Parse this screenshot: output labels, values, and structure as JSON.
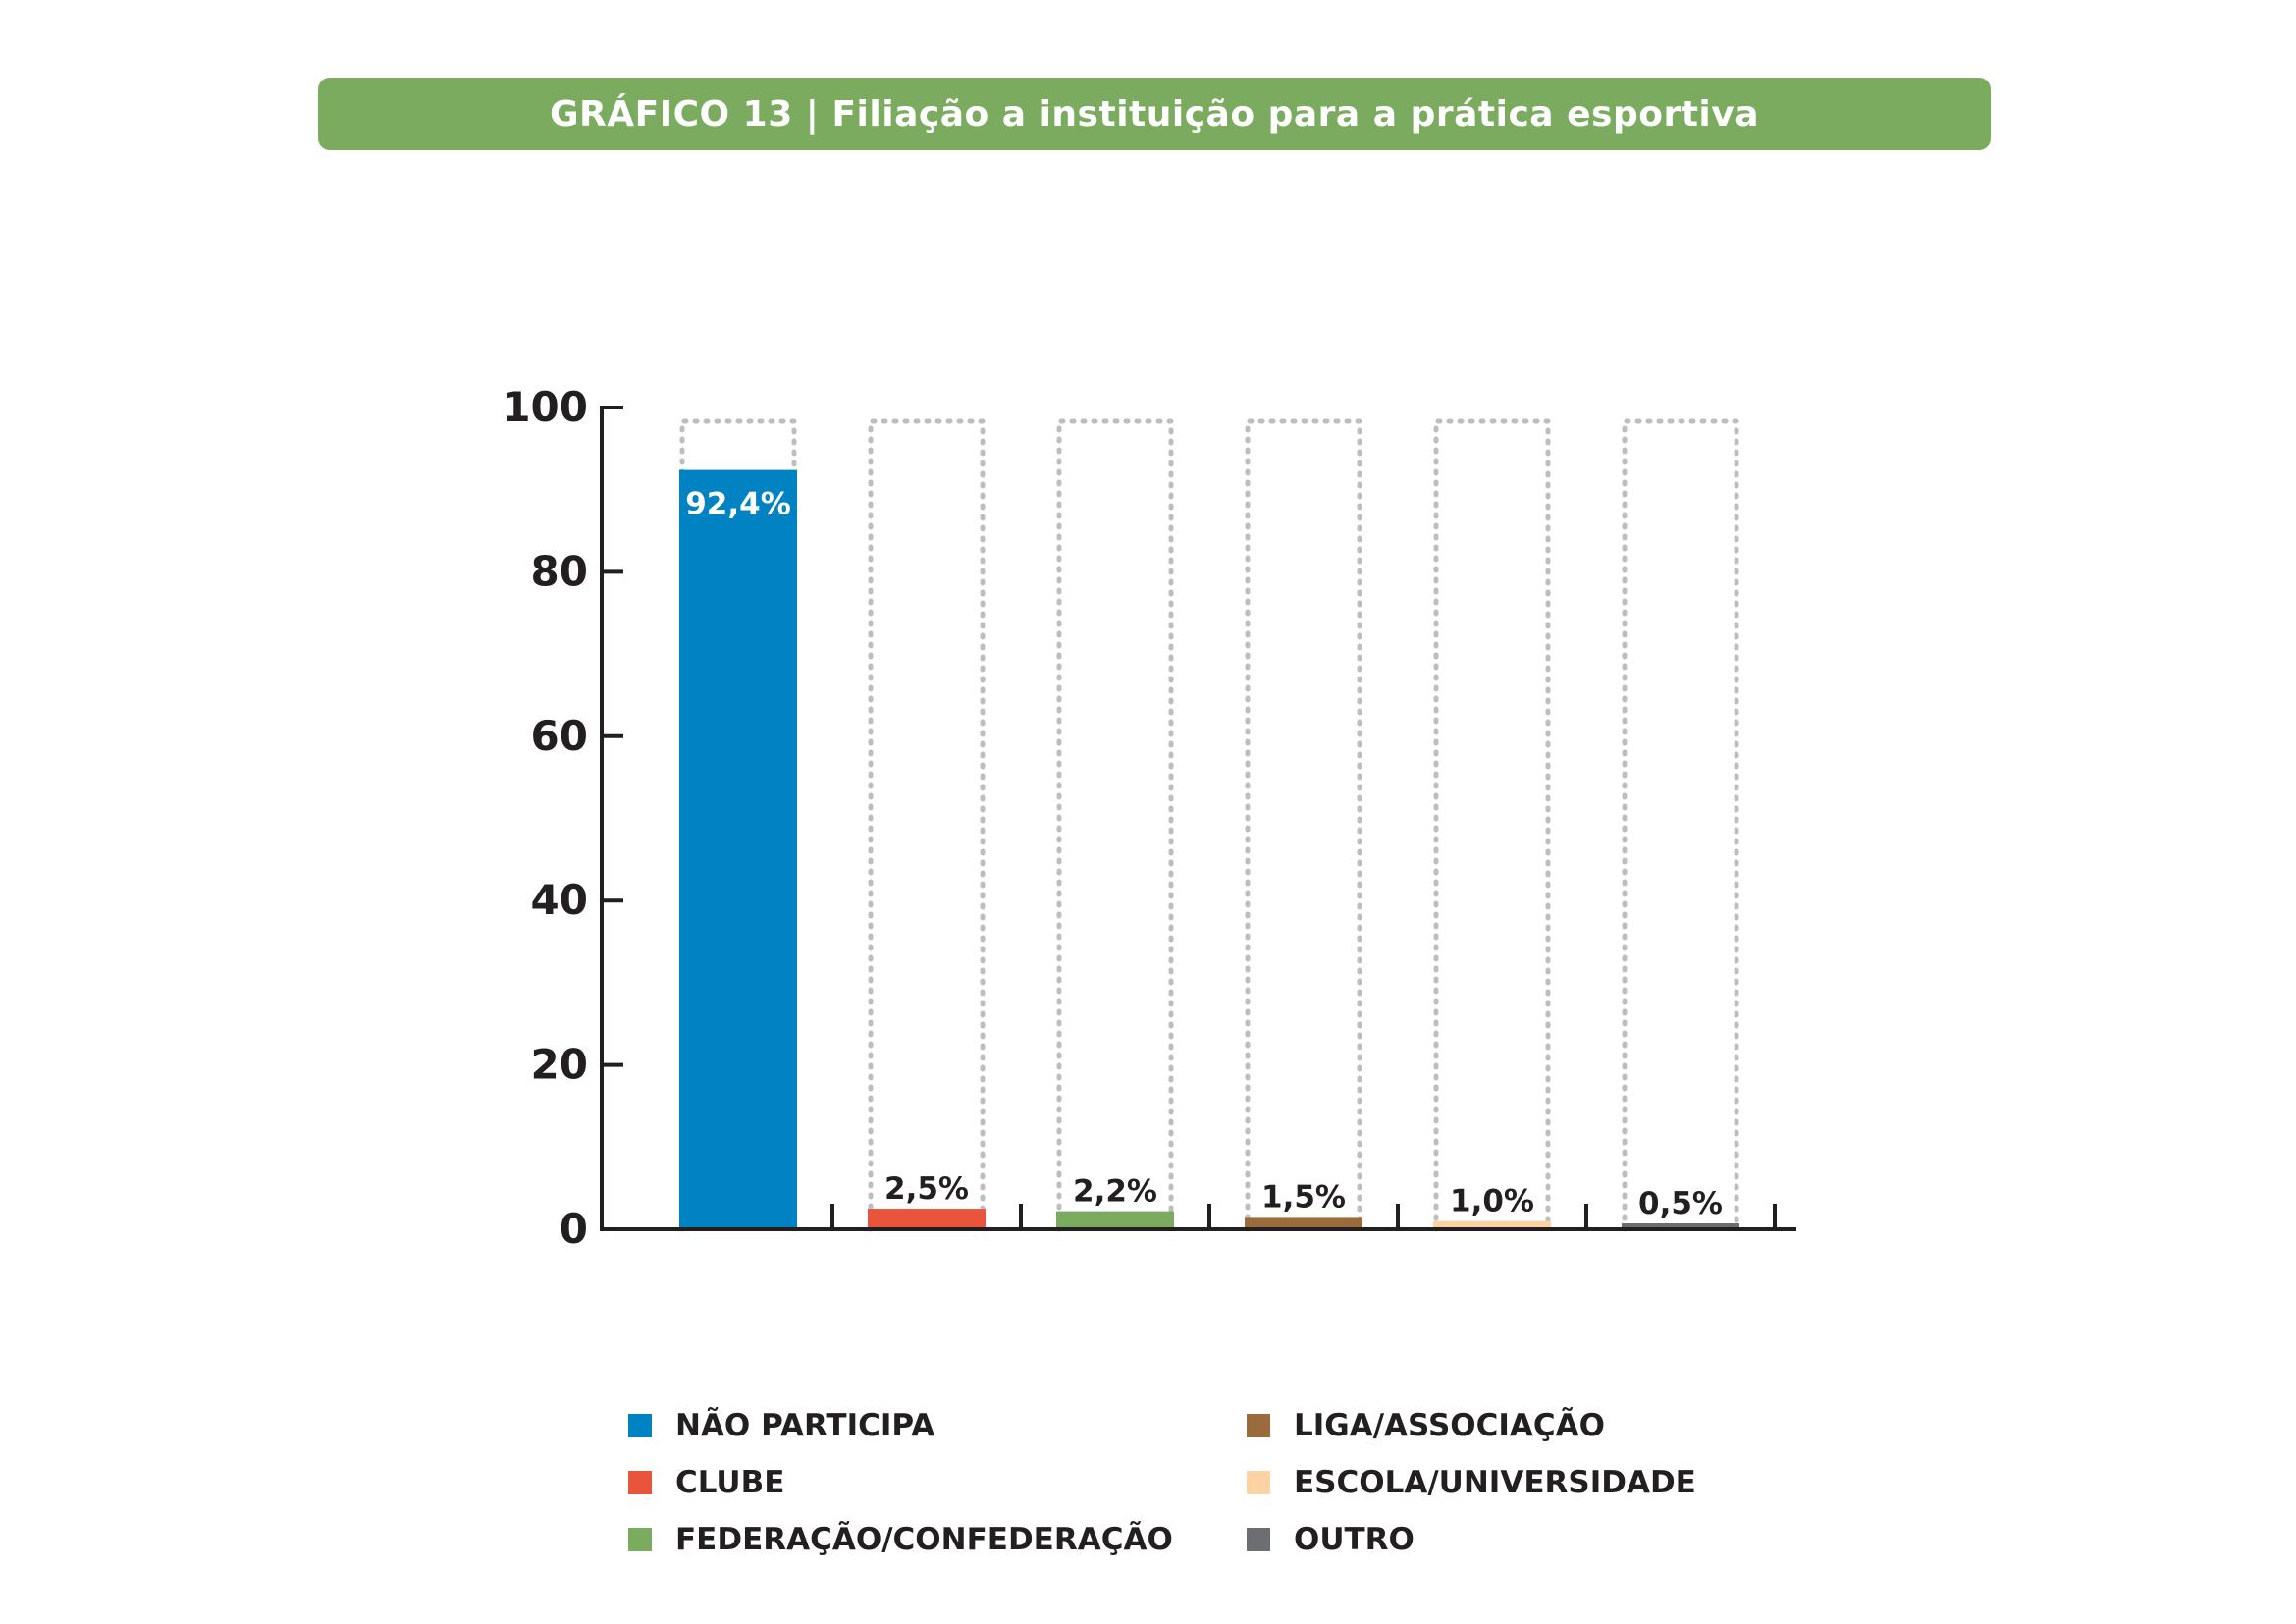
{
  "title": "GRÁFICO 13 | Filiação a instituição para a prática esportiva",
  "chart_data": {
    "type": "bar",
    "categories": [
      "NÃO PARTICIPA",
      "CLUBE",
      "FEDERAÇÃO/CONFEDERAÇÃO",
      "LIGA/ASSOCIAÇÃO",
      "ESCOLA/UNIVERSIDADE",
      "OUTRO"
    ],
    "values": [
      92.4,
      2.5,
      2.2,
      1.5,
      1.0,
      0.5
    ],
    "data_labels": [
      "92,4%",
      "2,5%",
      "2,2%",
      "1,5%",
      "1,0%",
      "0,5%"
    ],
    "colors": [
      "#0082c3",
      "#e8553c",
      "#7aab5e",
      "#9a6b3d",
      "#fdd3a4",
      "#6d6e71"
    ],
    "ylim": [
      0,
      100
    ],
    "yticks": [
      "0",
      "20",
      "40",
      "60",
      "80",
      "100"
    ],
    "background_bar_max": 100,
    "grid": false,
    "legend_position": "bottom"
  },
  "legend": {
    "items": [
      {
        "label": "NÃO PARTICIPA",
        "color": "#0082c3"
      },
      {
        "label": "CLUBE",
        "color": "#e8553c"
      },
      {
        "label": "FEDERAÇÃO/CONFEDERAÇÃO",
        "color": "#7aab5e"
      },
      {
        "label": "LIGA/ASSOCIAÇÃO",
        "color": "#9a6b3d"
      },
      {
        "label": "ESCOLA/UNIVERSIDADE",
        "color": "#fdd3a4"
      },
      {
        "label": "OUTRO",
        "color": "#6d6e71"
      }
    ]
  }
}
